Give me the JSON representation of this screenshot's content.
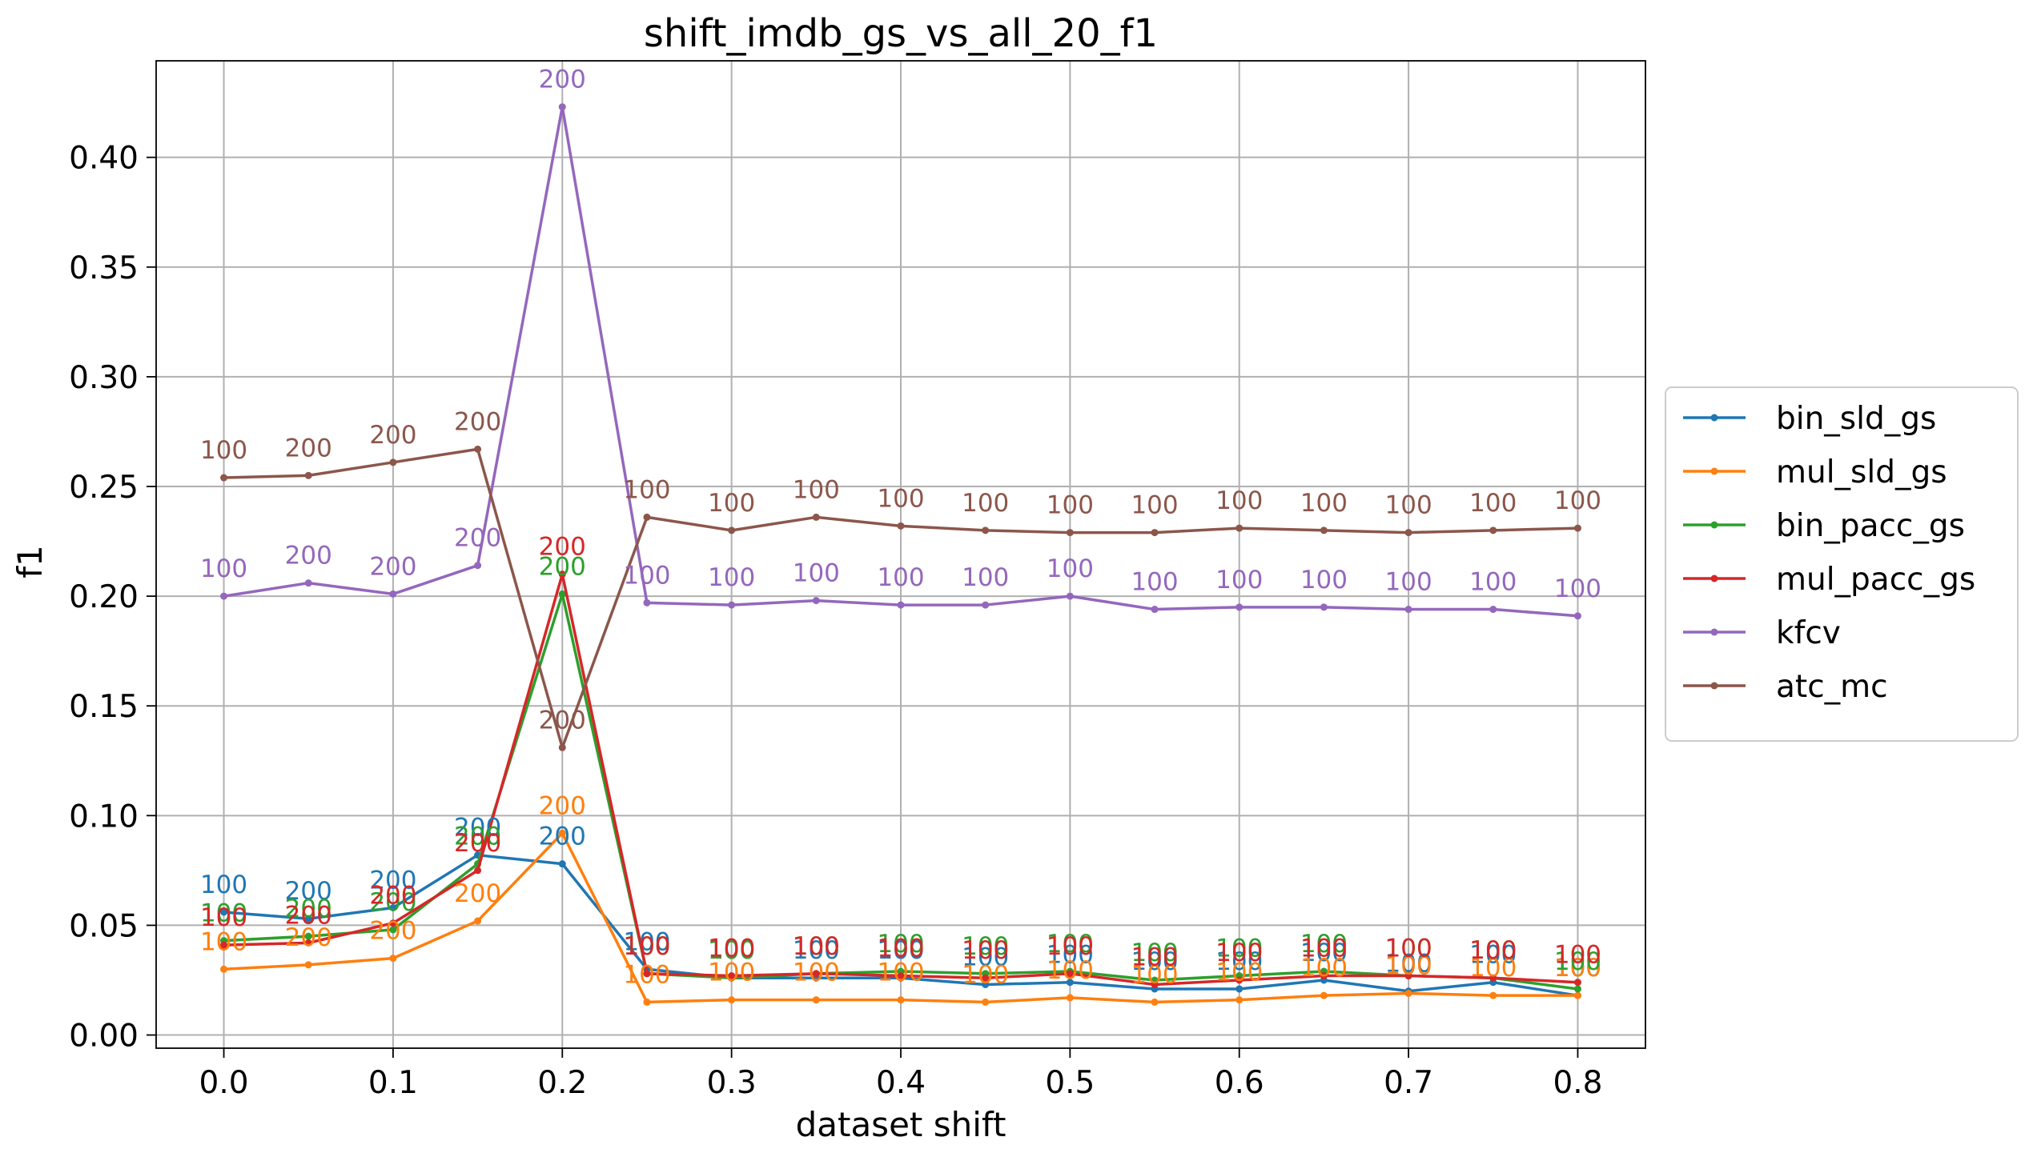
{
  "chart_data": {
    "type": "line",
    "title": "shift_imdb_gs_vs_all_20_f1",
    "xlabel": "dataset shift",
    "ylabel": "f1",
    "xlim": [
      -0.04,
      0.84
    ],
    "ylim": [
      -0.006,
      0.444
    ],
    "x_ticks": [
      "0.0",
      "0.1",
      "0.2",
      "0.3",
      "0.4",
      "0.5",
      "0.6",
      "0.7",
      "0.8"
    ],
    "y_ticks": [
      "0.00",
      "0.05",
      "0.10",
      "0.15",
      "0.20",
      "0.25",
      "0.30",
      "0.35",
      "0.40"
    ],
    "grid": true,
    "legend_position": "outside right, center",
    "x": [
      0.0,
      0.05,
      0.1,
      0.15,
      0.2,
      0.25,
      0.3,
      0.35,
      0.4,
      0.45,
      0.5,
      0.55,
      0.6,
      0.65,
      0.7,
      0.75,
      0.8
    ],
    "series": [
      {
        "name": "bin_sld_gs",
        "color": "#1f77b4",
        "values": [
          0.056,
          0.053,
          0.058,
          0.082,
          0.078,
          0.03,
          0.026,
          0.026,
          0.026,
          0.023,
          0.024,
          0.021,
          0.021,
          0.025,
          0.02,
          0.024,
          0.018
        ],
        "labels": [
          "100",
          "200",
          "200",
          "200",
          "200",
          "100",
          "100",
          "100",
          "100",
          "100",
          "100",
          "100",
          "100",
          "100",
          "100",
          "100",
          "100"
        ]
      },
      {
        "name": "mul_sld_gs",
        "color": "#ff7f0e",
        "values": [
          0.03,
          0.032,
          0.035,
          0.052,
          0.092,
          0.015,
          0.016,
          0.016,
          0.016,
          0.015,
          0.017,
          0.015,
          0.016,
          0.018,
          0.019,
          0.018,
          0.018
        ],
        "labels": [
          "100",
          "200",
          "200",
          "200",
          "200",
          "100",
          "100",
          "100",
          "100",
          "100",
          "100",
          "100",
          "100",
          "100",
          "100",
          "100",
          "100"
        ]
      },
      {
        "name": "bin_pacc_gs",
        "color": "#2ca02c",
        "values": [
          0.043,
          0.045,
          0.048,
          0.078,
          0.201,
          0.028,
          0.026,
          0.028,
          0.029,
          0.028,
          0.029,
          0.025,
          0.027,
          0.029,
          0.027,
          0.026,
          0.021
        ],
        "labels": [
          "100",
          "200",
          "200",
          "200",
          "200",
          "100",
          "100",
          "100",
          "100",
          "100",
          "100",
          "100",
          "100",
          "100",
          "100",
          "100",
          "100"
        ]
      },
      {
        "name": "mul_pacc_gs",
        "color": "#d62728",
        "values": [
          0.041,
          0.042,
          0.051,
          0.075,
          0.21,
          0.028,
          0.027,
          0.028,
          0.027,
          0.026,
          0.028,
          0.023,
          0.025,
          0.027,
          0.027,
          0.026,
          0.024
        ],
        "labels": [
          "100",
          "200",
          "200",
          "200",
          "200",
          "100",
          "100",
          "100",
          "100",
          "100",
          "100",
          "100",
          "100",
          "100",
          "100",
          "100",
          "100"
        ]
      },
      {
        "name": "kfcv",
        "color": "#9467bd",
        "values": [
          0.2,
          0.206,
          0.201,
          0.214,
          0.423,
          0.197,
          0.196,
          0.198,
          0.196,
          0.196,
          0.2,
          0.194,
          0.195,
          0.195,
          0.194,
          0.194,
          0.191
        ],
        "labels": [
          "100",
          "200",
          "200",
          "200",
          "200",
          "100",
          "100",
          "100",
          "100",
          "100",
          "100",
          "100",
          "100",
          "100",
          "100",
          "100",
          "100"
        ]
      },
      {
        "name": "atc_mc",
        "color": "#8c564b",
        "values": [
          0.254,
          0.255,
          0.261,
          0.267,
          0.131,
          0.236,
          0.23,
          0.236,
          0.232,
          0.23,
          0.229,
          0.229,
          0.231,
          0.23,
          0.229,
          0.23,
          0.231
        ],
        "labels": [
          "100",
          "200",
          "200",
          "200",
          "200",
          "100",
          "100",
          "100",
          "100",
          "100",
          "100",
          "100",
          "100",
          "100",
          "100",
          "100",
          "100"
        ]
      }
    ]
  }
}
